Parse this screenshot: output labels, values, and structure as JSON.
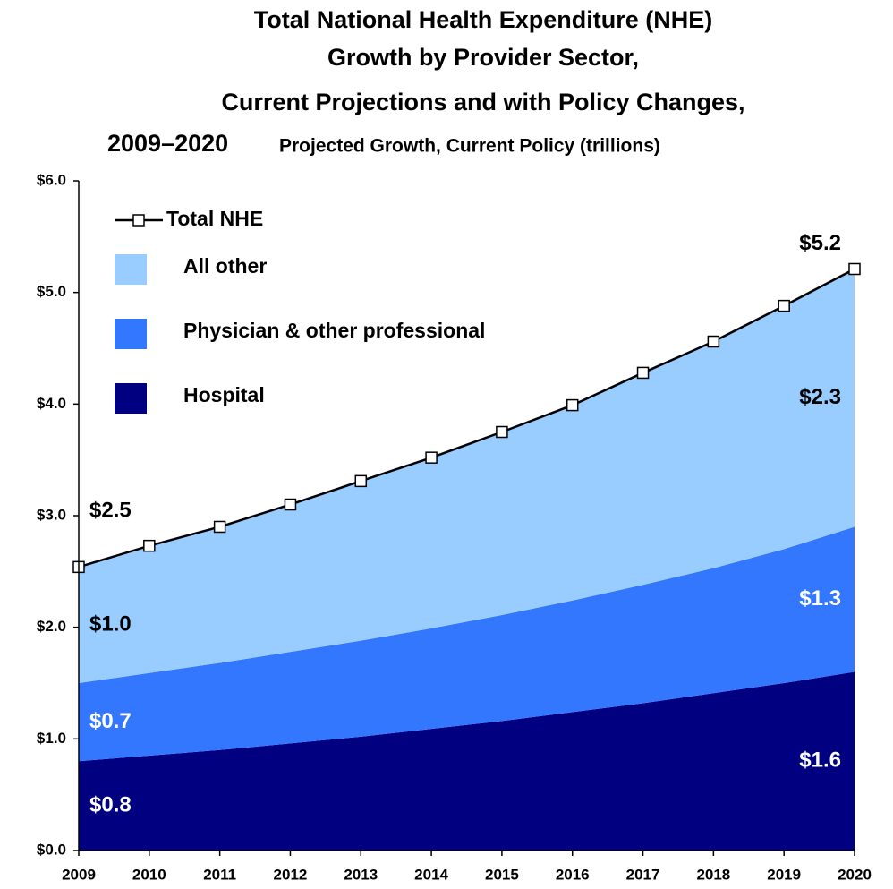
{
  "chart_data": {
    "type": "area",
    "title": [
      "Total National Health Expenditure (NHE)",
      "Growth by Provider Sector,",
      "Current Projections and with Policy Changes,",
      "2009–2020"
    ],
    "subtitle": "Projected Growth, Current Policy (trillions)",
    "categories": [
      "2009",
      "2010",
      "2011",
      "2012",
      "2013",
      "2014",
      "2015",
      "2016",
      "2017",
      "2018",
      "2019",
      "2020"
    ],
    "stacked": true,
    "ylim": [
      0,
      6
    ],
    "yticks": [
      {
        "value": 0,
        "label": "$0.0"
      },
      {
        "value": 1,
        "label": "$1.0"
      },
      {
        "value": 2,
        "label": "$2.0"
      },
      {
        "value": 3,
        "label": "$3.0"
      },
      {
        "value": 4,
        "label": "$4.0"
      },
      {
        "value": 5,
        "label": "$5.0"
      },
      {
        "value": 6,
        "label": "$6.0"
      }
    ],
    "grid": false,
    "legend": "top-left",
    "series": [
      {
        "name": "Hospital",
        "color": "#000080",
        "values": [
          0.8,
          0.85,
          0.9,
          0.96,
          1.02,
          1.09,
          1.16,
          1.24,
          1.32,
          1.41,
          1.5,
          1.6
        ],
        "value_labels": [
          "$0.8",
          null,
          null,
          null,
          null,
          null,
          null,
          null,
          null,
          null,
          null,
          "$1.6"
        ],
        "label_color": "#ffffff"
      },
      {
        "name": "Physician & other professional",
        "color": "#3377ff",
        "values": [
          0.7,
          0.74,
          0.78,
          0.82,
          0.86,
          0.9,
          0.95,
          1.0,
          1.06,
          1.12,
          1.2,
          1.3
        ],
        "value_labels": [
          "$0.7",
          null,
          null,
          null,
          null,
          null,
          null,
          null,
          null,
          null,
          null,
          "$1.3"
        ],
        "label_color": "#ffffff"
      },
      {
        "name": "All other",
        "color": "#99ccff",
        "values": [
          1.04,
          1.14,
          1.22,
          1.32,
          1.43,
          1.53,
          1.64,
          1.75,
          1.9,
          2.03,
          2.18,
          2.31
        ],
        "value_labels": [
          "$1.0",
          null,
          null,
          null,
          null,
          null,
          null,
          null,
          null,
          null,
          null,
          "$2.3"
        ],
        "label_color": "#000000"
      },
      {
        "name": "Total NHE",
        "type": "line",
        "stacked": false,
        "color": "#000000",
        "values": [
          2.54,
          2.73,
          2.9,
          3.1,
          3.31,
          3.52,
          3.75,
          3.99,
          4.28,
          4.56,
          4.88,
          5.21
        ],
        "value_labels": [
          "$2.5",
          null,
          null,
          null,
          null,
          null,
          null,
          null,
          null,
          null,
          null,
          "$5.2"
        ],
        "label_color": "#000000"
      }
    ]
  }
}
